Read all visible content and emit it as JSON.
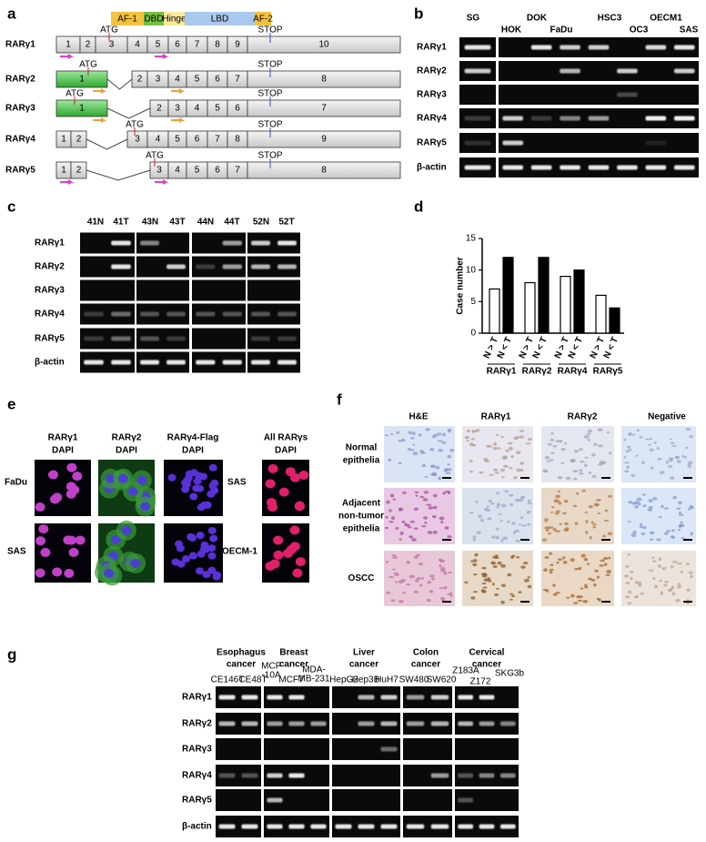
{
  "panels": {
    "a": {
      "label": "a",
      "domains": [
        "AF-1",
        "DBD",
        "Hinge",
        "LBD",
        "AF-2"
      ],
      "isoforms": [
        {
          "name": "RARγ1",
          "exons": [
            "1",
            "2",
            "3",
            "4",
            "5",
            "6",
            "7",
            "8",
            "9",
            "10"
          ],
          "start": "ATG",
          "stop": "STOP"
        },
        {
          "name": "RARγ2",
          "exons": [
            "1",
            "2",
            "3",
            "4",
            "5",
            "6",
            "7",
            "8"
          ],
          "start": "ATG",
          "stop": "STOP"
        },
        {
          "name": "RARγ3",
          "exons": [
            "1",
            "2",
            "3",
            "4",
            "5",
            "6",
            "7"
          ],
          "start": "ATG",
          "stop": "STOP"
        },
        {
          "name": "RARγ4",
          "exons": [
            "1",
            "2",
            "3",
            "4",
            "5",
            "6",
            "7",
            "8",
            "9"
          ],
          "start": "ATG",
          "stop": "STOP"
        },
        {
          "name": "RARγ5",
          "exons": [
            "1",
            "2",
            "3",
            "4",
            "5",
            "6",
            "7",
            "8"
          ],
          "start": "ATG",
          "stop": "STOP"
        }
      ]
    },
    "b": {
      "label": "b",
      "lanes": [
        "SG",
        "HOK",
        "DOK",
        "FaDu",
        "HSC3",
        "OC3",
        "OECM1",
        "SAS"
      ],
      "rows": [
        "RARγ1",
        "RARγ2",
        "RARγ3",
        "RARγ4",
        "RARγ5",
        "β-actin"
      ]
    },
    "c": {
      "label": "c",
      "lanes": [
        "41N",
        "41T",
        "43N",
        "43T",
        "44N",
        "44T",
        "52N",
        "52T"
      ],
      "rows": [
        "RARγ1",
        "RARγ2",
        "RARγ3",
        "RARγ4",
        "RARγ5",
        "β-actin"
      ]
    },
    "e": {
      "label": "e",
      "stains": [
        {
          "marker": "RARγ1",
          "color": "#e0202a",
          "counterstain": "DAPI",
          "counter_color": "#1f5fbf"
        },
        {
          "marker": "RARγ2",
          "color": "#2a9a3a",
          "counterstain": "DAPI",
          "counter_color": "#1f5fbf"
        },
        {
          "marker": "RARγ4-Flag",
          "color": "#e0202a",
          "counterstain": "DAPI",
          "counter_color": "#1f5fbf"
        },
        {
          "marker": "All RARγs",
          "color": "#e0202a",
          "counterstain": "DAPI",
          "counter_color": "#1f5fbf"
        }
      ],
      "cell_lines": [
        "FaDu",
        "SAS",
        "SAS",
        "OECM-1"
      ]
    },
    "f": {
      "label": "f",
      "columns": [
        "H&E",
        "RARγ1",
        "RARγ2",
        "Negative"
      ],
      "tissues": [
        [
          "Normal",
          "epithelia"
        ],
        [
          "Adjacent",
          "non-tumor",
          "epithelia"
        ],
        [
          "OSCC"
        ]
      ]
    },
    "g": {
      "label": "g",
      "groups": [
        {
          "name": [
            "Esophagus",
            "cancer"
          ],
          "lanes": [
            {
              "label": [
                "CE146T"
              ],
              "color": "#000000"
            },
            {
              "label": [
                "CE48T"
              ],
              "color": "#000000"
            }
          ]
        },
        {
          "name": [
            "Breast",
            "cancer"
          ],
          "lanes": [
            {
              "label": [
                "MCF",
                "-10A"
              ],
              "color": "#5a9a3a"
            },
            {
              "label": [
                "MCF7"
              ],
              "color": "#000000"
            },
            {
              "label": [
                "MDA-",
                "MB-231"
              ],
              "color": "#000000"
            }
          ]
        },
        {
          "name": [
            "Liver",
            "cancer"
          ],
          "lanes": [
            {
              "label": [
                "HepG2"
              ],
              "color": "#000000"
            },
            {
              "label": [
                "Hep3B"
              ],
              "color": "#000000"
            },
            {
              "label": [
                "HuH7"
              ],
              "color": "#000000"
            }
          ]
        },
        {
          "name": [
            "Colon",
            "cancer"
          ],
          "lanes": [
            {
              "label": [
                "SW480"
              ],
              "color": "#000000"
            },
            {
              "label": [
                "SW620"
              ],
              "color": "#000000"
            }
          ]
        },
        {
          "name": [
            "Cervical",
            "cancer"
          ],
          "lanes": [
            {
              "label": [
                "Z183A"
              ],
              "color": "#5a9a3a"
            },
            {
              "label": [
                "Z172"
              ],
              "color": "#5a9a3a"
            },
            {
              "label": [
                "SKG3b"
              ],
              "color": "#000000"
            }
          ]
        }
      ],
      "group_color": "#2f7fc1",
      "rows": [
        "RARγ1",
        "RARγ2",
        "RARγ3",
        "RARγ4",
        "RARγ5",
        "β-actin"
      ]
    }
  },
  "chart_data": {
    "type": "bar",
    "panel_label": "d",
    "y_label": "Case number",
    "categories": [
      "RARγ1",
      "RARγ2",
      "RARγ4",
      "RARγ5"
    ],
    "series": [
      {
        "name": "N > T",
        "color": "#ffffff",
        "values": [
          7,
          8,
          9,
          6
        ]
      },
      {
        "name": "N < T",
        "color": "#000000",
        "values": [
          12,
          12,
          10,
          4
        ]
      }
    ],
    "ylim": [
      0,
      15
    ],
    "yticks": [
      0,
      5,
      10,
      15
    ]
  }
}
